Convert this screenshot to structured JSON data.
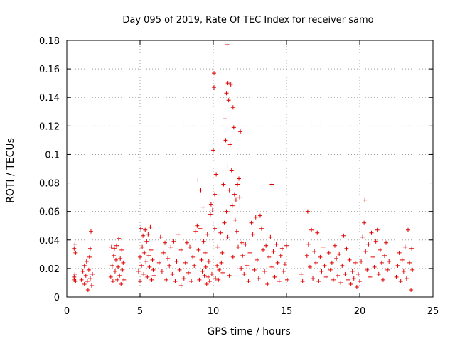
{
  "chart_data": {
    "type": "scatter",
    "title": "Day 095 of 2019, Rate Of TEC Index for receiver samo",
    "xlabel": "GPS time / hours",
    "ylabel": "ROTI / TECUs",
    "xlim": [
      0,
      25
    ],
    "ylim": [
      0,
      0.18
    ],
    "xticks": [
      0,
      5,
      10,
      15,
      20,
      25
    ],
    "xtick_labels": [
      "0",
      "5",
      "10",
      "15",
      "20",
      "25"
    ],
    "yticks": [
      0,
      0.02,
      0.04,
      0.06,
      0.08,
      0.1,
      0.12,
      0.14,
      0.16,
      0.18
    ],
    "ytick_labels": [
      "0",
      "0.02",
      "0.04",
      "0.06",
      "0.08",
      "0.1",
      "0.12",
      "0.14",
      "0.16",
      "0.18"
    ],
    "grid": true,
    "marker": "+",
    "color": "#e00000",
    "series": [
      {
        "name": "ROTI",
        "points": [
          [
            0.5,
            0.014
          ],
          [
            0.5,
            0.012
          ],
          [
            0.55,
            0.016
          ],
          [
            0.5,
            0.034
          ],
          [
            0.55,
            0.037
          ],
          [
            0.6,
            0.031
          ],
          [
            0.6,
            0.011
          ],
          [
            1.0,
            0.012
          ],
          [
            1.1,
            0.018
          ],
          [
            1.2,
            0.022
          ],
          [
            1.2,
            0.009
          ],
          [
            1.3,
            0.015
          ],
          [
            1.35,
            0.025
          ],
          [
            1.4,
            0.011
          ],
          [
            1.45,
            0.005
          ],
          [
            1.5,
            0.019
          ],
          [
            1.55,
            0.028
          ],
          [
            1.6,
            0.013
          ],
          [
            1.6,
            0.034
          ],
          [
            1.65,
            0.046
          ],
          [
            1.7,
            0.008
          ],
          [
            1.75,
            0.016
          ],
          [
            3.0,
            0.014
          ],
          [
            3.05,
            0.035
          ],
          [
            3.1,
            0.022
          ],
          [
            3.15,
            0.011
          ],
          [
            3.2,
            0.029
          ],
          [
            3.25,
            0.034
          ],
          [
            3.3,
            0.018
          ],
          [
            3.35,
            0.026
          ],
          [
            3.4,
            0.036
          ],
          [
            3.45,
            0.012
          ],
          [
            3.5,
            0.021
          ],
          [
            3.55,
            0.041
          ],
          [
            3.6,
            0.015
          ],
          [
            3.65,
            0.027
          ],
          [
            3.7,
            0.009
          ],
          [
            3.75,
            0.033
          ],
          [
            3.8,
            0.019
          ],
          [
            3.85,
            0.024
          ],
          [
            3.9,
            0.012
          ],
          [
            4.9,
            0.018
          ],
          [
            5.0,
            0.028
          ],
          [
            5.0,
            0.011
          ],
          [
            5.05,
            0.048
          ],
          [
            5.1,
            0.022
          ],
          [
            5.15,
            0.035
          ],
          [
            5.2,
            0.043
          ],
          [
            5.25,
            0.016
          ],
          [
            5.3,
            0.031
          ],
          [
            5.35,
            0.047
          ],
          [
            5.4,
            0.025
          ],
          [
            5.45,
            0.039
          ],
          [
            5.5,
            0.014
          ],
          [
            5.55,
            0.044
          ],
          [
            5.6,
            0.029
          ],
          [
            5.65,
            0.021
          ],
          [
            5.7,
            0.049
          ],
          [
            5.75,
            0.033
          ],
          [
            5.8,
            0.012
          ],
          [
            5.85,
            0.026
          ],
          [
            5.9,
            0.019
          ],
          [
            5.95,
            0.015
          ],
          [
            6.3,
            0.024
          ],
          [
            6.4,
            0.042
          ],
          [
            6.5,
            0.018
          ],
          [
            6.6,
            0.031
          ],
          [
            6.7,
            0.038
          ],
          [
            6.8,
            0.012
          ],
          [
            6.9,
            0.027
          ],
          [
            7.0,
            0.022
          ],
          [
            7.1,
            0.035
          ],
          [
            7.2,
            0.016
          ],
          [
            7.3,
            0.039
          ],
          [
            7.4,
            0.011
          ],
          [
            7.5,
            0.025
          ],
          [
            7.6,
            0.044
          ],
          [
            7.7,
            0.019
          ],
          [
            7.8,
            0.008
          ],
          [
            7.8,
            0.033
          ],
          [
            8.0,
            0.013
          ],
          [
            8.1,
            0.024
          ],
          [
            8.2,
            0.038
          ],
          [
            8.3,
            0.017
          ],
          [
            8.4,
            0.035
          ],
          [
            8.5,
            0.011
          ],
          [
            8.6,
            0.028
          ],
          [
            8.7,
            0.022
          ],
          [
            8.8,
            0.046
          ],
          [
            8.9,
            0.05
          ],
          [
            8.95,
            0.082
          ],
          [
            9.0,
            0.033
          ],
          [
            9.05,
            0.012
          ],
          [
            9.1,
            0.048
          ],
          [
            9.15,
            0.075
          ],
          [
            9.2,
            0.026
          ],
          [
            9.25,
            0.018
          ],
          [
            9.3,
            0.063
          ],
          [
            9.35,
            0.039
          ],
          [
            9.4,
            0.015
          ],
          [
            9.45,
            0.031
          ],
          [
            9.5,
            0.021
          ],
          [
            9.55,
            0.009
          ],
          [
            9.6,
            0.044
          ],
          [
            9.65,
            0.014
          ],
          [
            9.7,
            0.025
          ],
          [
            9.75,
            0.011
          ],
          [
            9.8,
            0.058
          ],
          [
            9.85,
            0.065
          ],
          [
            9.9,
            0.016
          ],
          [
            9.95,
            0.061
          ],
          [
            10.0,
            0.103
          ],
          [
            10.05,
            0.157
          ],
          [
            10.05,
            0.147
          ],
          [
            10.1,
            0.072
          ],
          [
            10.1,
            0.048
          ],
          [
            10.15,
            0.013
          ],
          [
            10.2,
            0.086
          ],
          [
            10.25,
            0.022
          ],
          [
            10.3,
            0.035
          ],
          [
            10.35,
            0.012
          ],
          [
            10.4,
            0.019
          ],
          [
            10.5,
            0.045
          ],
          [
            10.55,
            0.024
          ],
          [
            10.6,
            0.031
          ],
          [
            10.65,
            0.017
          ],
          [
            10.7,
            0.079
          ],
          [
            10.75,
            0.052
          ],
          [
            10.8,
            0.125
          ],
          [
            10.85,
            0.11
          ],
          [
            10.9,
            0.143
          ],
          [
            10.9,
            0.06
          ],
          [
            10.95,
            0.177
          ],
          [
            10.95,
            0.092
          ],
          [
            11.0,
            0.15
          ],
          [
            11.0,
            0.042
          ],
          [
            11.05,
            0.138
          ],
          [
            11.1,
            0.075
          ],
          [
            11.1,
            0.015
          ],
          [
            11.15,
            0.107
          ],
          [
            11.2,
            0.149
          ],
          [
            11.25,
            0.089
          ],
          [
            11.3,
            0.064
          ],
          [
            11.35,
            0.133
          ],
          [
            11.35,
            0.028
          ],
          [
            11.4,
            0.119
          ],
          [
            11.45,
            0.072
          ],
          [
            11.5,
            0.054
          ],
          [
            11.55,
            0.068
          ],
          [
            11.6,
            0.046
          ],
          [
            11.65,
            0.079
          ],
          [
            11.7,
            0.035
          ],
          [
            11.75,
            0.083
          ],
          [
            11.8,
            0.07
          ],
          [
            11.85,
            0.116
          ],
          [
            11.9,
            0.02
          ],
          [
            11.95,
            0.038
          ],
          [
            12.0,
            0.029
          ],
          [
            12.1,
            0.016
          ],
          [
            12.2,
            0.037
          ],
          [
            12.3,
            0.022
          ],
          [
            12.4,
            0.011
          ],
          [
            12.5,
            0.031
          ],
          [
            12.6,
            0.052
          ],
          [
            12.7,
            0.044
          ],
          [
            12.8,
            0.019
          ],
          [
            12.9,
            0.056
          ],
          [
            13.0,
            0.026
          ],
          [
            13.1,
            0.013
          ],
          [
            13.2,
            0.057
          ],
          [
            13.3,
            0.048
          ],
          [
            13.4,
            0.033
          ],
          [
            13.5,
            0.018
          ],
          [
            13.6,
            0.036
          ],
          [
            13.7,
            0.009
          ],
          [
            13.8,
            0.028
          ],
          [
            13.9,
            0.042
          ],
          [
            14.0,
            0.079
          ],
          [
            14.0,
            0.021
          ],
          [
            14.1,
            0.032
          ],
          [
            14.2,
            0.014
          ],
          [
            14.3,
            0.037
          ],
          [
            14.4,
            0.024
          ],
          [
            14.5,
            0.011
          ],
          [
            14.6,
            0.029
          ],
          [
            14.7,
            0.034
          ],
          [
            14.8,
            0.018
          ],
          [
            14.9,
            0.023
          ],
          [
            15.0,
            0.036
          ],
          [
            15.05,
            0.012
          ],
          [
            16.0,
            0.016
          ],
          [
            16.1,
            0.011
          ],
          [
            16.4,
            0.029
          ],
          [
            16.45,
            0.06
          ],
          [
            16.5,
            0.037
          ],
          [
            16.6,
            0.021
          ],
          [
            16.7,
            0.047
          ],
          [
            16.8,
            0.013
          ],
          [
            16.9,
            0.032
          ],
          [
            17.0,
            0.024
          ],
          [
            17.1,
            0.045
          ],
          [
            17.2,
            0.011
          ],
          [
            17.3,
            0.028
          ],
          [
            17.4,
            0.018
          ],
          [
            17.5,
            0.035
          ],
          [
            17.6,
            0.022
          ],
          [
            17.7,
            0.014
          ],
          [
            17.9,
            0.031
          ],
          [
            18.0,
            0.019
          ],
          [
            18.1,
            0.024
          ],
          [
            18.2,
            0.012
          ],
          [
            18.3,
            0.036
          ],
          [
            18.4,
            0.027
          ],
          [
            18.5,
            0.015
          ],
          [
            18.6,
            0.03
          ],
          [
            18.7,
            0.01
          ],
          [
            18.8,
            0.022
          ],
          [
            18.9,
            0.043
          ],
          [
            19.0,
            0.016
          ],
          [
            19.1,
            0.034
          ],
          [
            19.2,
            0.012
          ],
          [
            19.3,
            0.026
          ],
          [
            19.4,
            0.009
          ],
          [
            19.5,
            0.018
          ],
          [
            19.6,
            0.013
          ],
          [
            19.7,
            0.024
          ],
          [
            19.8,
            0.007
          ],
          [
            19.9,
            0.016
          ],
          [
            20.0,
            0.011
          ],
          [
            20.1,
            0.025
          ],
          [
            20.2,
            0.042
          ],
          [
            20.3,
            0.052
          ],
          [
            20.35,
            0.068
          ],
          [
            20.4,
            0.032
          ],
          [
            20.5,
            0.019
          ],
          [
            20.6,
            0.037
          ],
          [
            20.7,
            0.014
          ],
          [
            20.8,
            0.045
          ],
          [
            20.9,
            0.028
          ],
          [
            21.0,
            0.021
          ],
          [
            21.1,
            0.039
          ],
          [
            21.2,
            0.047
          ],
          [
            21.3,
            0.016
          ],
          [
            21.4,
            0.033
          ],
          [
            21.5,
            0.024
          ],
          [
            21.6,
            0.012
          ],
          [
            21.7,
            0.029
          ],
          [
            21.8,
            0.038
          ],
          [
            21.9,
            0.019
          ],
          [
            22.0,
            0.025
          ],
          [
            22.5,
            0.014
          ],
          [
            22.6,
            0.022
          ],
          [
            22.7,
            0.031
          ],
          [
            22.8,
            0.011
          ],
          [
            22.9,
            0.026
          ],
          [
            23.0,
            0.018
          ],
          [
            23.1,
            0.035
          ],
          [
            23.2,
            0.013
          ],
          [
            23.3,
            0.047
          ],
          [
            23.4,
            0.024
          ],
          [
            23.5,
            0.005
          ],
          [
            23.55,
            0.034
          ],
          [
            23.6,
            0.019
          ]
        ]
      }
    ]
  }
}
